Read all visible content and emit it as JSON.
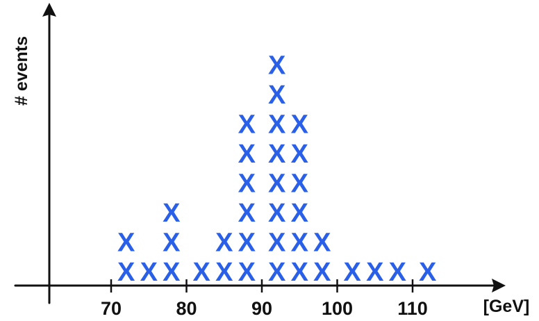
{
  "chart_data": {
    "type": "scatter",
    "title": "",
    "xlabel": "[GeV]",
    "ylabel": "# events",
    "x_ticks": [
      "70",
      "80",
      "90",
      "100",
      "110"
    ],
    "marker": "X",
    "marker_color": "#2a5fe8",
    "grid": false,
    "legend": "none",
    "bins": [
      {
        "x": 72,
        "count": 2
      },
      {
        "x": 75,
        "count": 1
      },
      {
        "x": 78,
        "count": 3
      },
      {
        "x": 82,
        "count": 1
      },
      {
        "x": 85,
        "count": 2
      },
      {
        "x": 88,
        "count": 6
      },
      {
        "x": 92,
        "count": 8
      },
      {
        "x": 95,
        "count": 6
      },
      {
        "x": 98,
        "count": 2
      },
      {
        "x": 102,
        "count": 1
      },
      {
        "x": 105,
        "count": 1
      },
      {
        "x": 108,
        "count": 1
      },
      {
        "x": 112,
        "count": 1
      }
    ]
  }
}
